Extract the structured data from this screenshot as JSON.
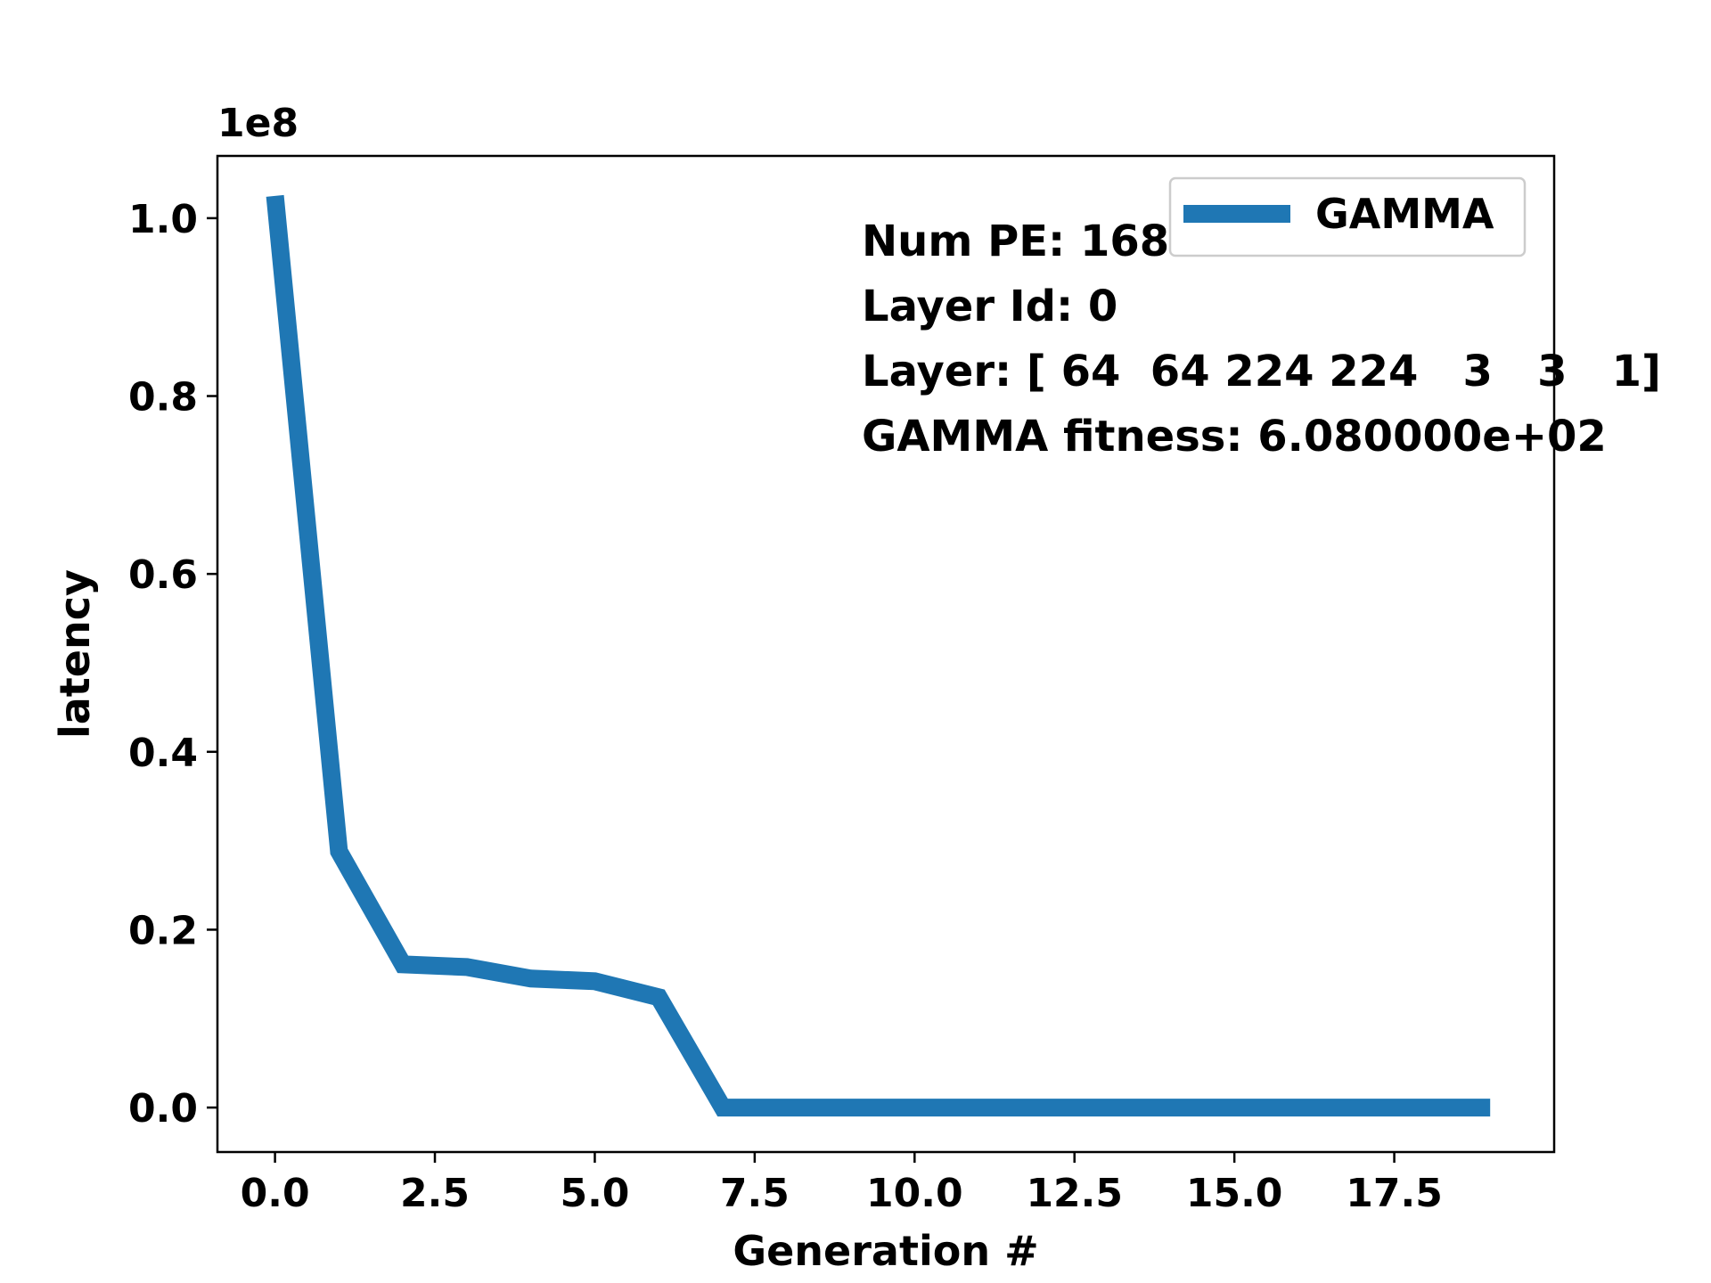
{
  "chart_data": {
    "type": "line",
    "xlabel": "Generation #",
    "ylabel": "latency",
    "y_offset_label": "1e8",
    "xlim": [
      -0.9,
      20.0
    ],
    "ylim": [
      -0.05,
      1.07
    ],
    "x_ticks": [
      0.0,
      2.5,
      5.0,
      7.5,
      10.0,
      12.5,
      15.0,
      17.5
    ],
    "x_tick_labels": [
      "0.0",
      "2.5",
      "5.0",
      "7.5",
      "10.0",
      "12.5",
      "15.0",
      "17.5"
    ],
    "y_ticks": [
      0.0,
      0.2,
      0.4,
      0.6,
      0.8,
      1.0
    ],
    "y_tick_labels": [
      "0.0",
      "0.2",
      "0.4",
      "0.6",
      "0.8",
      "1.0"
    ],
    "grid": false,
    "legend_position": "top-right",
    "series": [
      {
        "name": "GAMMA",
        "color": "#1f77b4",
        "x": [
          0,
          1,
          2,
          3,
          4,
          5,
          6,
          7,
          8,
          9,
          10,
          11,
          12,
          13,
          14,
          15,
          16,
          17,
          18,
          19
        ],
        "values": [
          1.025,
          0.288,
          0.161,
          0.158,
          0.145,
          0.142,
          0.124,
          0.0,
          0.0,
          0.0,
          0.0,
          0.0,
          0.0,
          0.0,
          0.0,
          0.0,
          0.0,
          0.0,
          0.0,
          0.0
        ]
      }
    ],
    "annotations": [
      "Num PE: 168",
      "Layer Id: 0",
      "Layer: [ 64  64 224 224   3   3   1]",
      "GAMMA fitness: 6.080000e+02"
    ]
  }
}
